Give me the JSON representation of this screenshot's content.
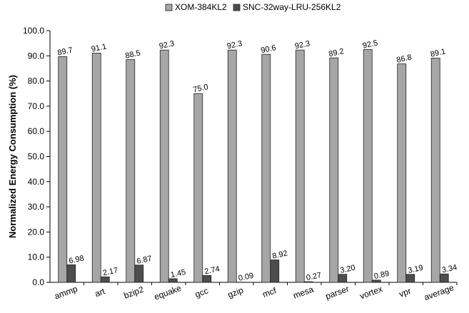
{
  "chart_data": {
    "type": "bar",
    "title": "",
    "xlabel": "",
    "ylabel": "Normalized Energy Consumption (%)",
    "ylim": [
      0,
      100
    ],
    "yticks": [
      "0.0",
      "10.0",
      "20.0",
      "30.0",
      "40.0",
      "50.0",
      "60.0",
      "70.0",
      "80.0",
      "90.0",
      "100.0"
    ],
    "categories": [
      "ammp",
      "art",
      "bzip2",
      "equake",
      "gcc",
      "gzip",
      "mcf",
      "mesa",
      "parser",
      "vortex",
      "vpr",
      "average"
    ],
    "series": [
      {
        "name": "XOM-384KL2",
        "color": "#a6a6a6",
        "values": [
          89.7,
          91.1,
          88.5,
          92.3,
          75.0,
          92.3,
          90.6,
          92.3,
          89.2,
          92.5,
          86.8,
          89.1
        ],
        "labels": [
          "89.7",
          "91.1",
          "88.5",
          "92.3",
          "75.0",
          "92.3",
          "90.6",
          "92.3",
          "89.2",
          "92.5",
          "86.8",
          "89.1"
        ]
      },
      {
        "name": "SNC-32way-LRU-256KL2",
        "color": "#4d4d4d",
        "values": [
          6.98,
          2.17,
          6.87,
          1.45,
          2.74,
          0.09,
          8.92,
          0.27,
          3.2,
          0.89,
          3.19,
          3.34
        ],
        "labels": [
          "6.98",
          "2.17",
          "6.87",
          "1.45",
          "2.74",
          "0.09",
          "8.92",
          "0.27",
          "3.20",
          "0.89",
          "3.19",
          "3.34"
        ]
      }
    ],
    "grid": false,
    "legend": "top"
  }
}
